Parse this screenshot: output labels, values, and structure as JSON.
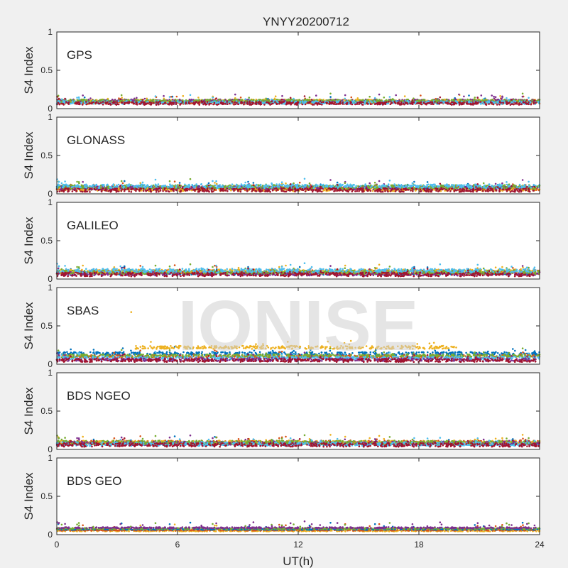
{
  "figure": {
    "title": "YNYY20200712",
    "watermark": "IONISE",
    "background": "#f0f0f0",
    "axes_color": "#262626"
  },
  "chart_data": [
    {
      "type": "scatter",
      "label": "GPS",
      "ylabel": "S4 Index",
      "xlabel": "",
      "xlim": [
        0,
        24
      ],
      "ylim": [
        0,
        1
      ],
      "yticks": [
        0,
        0.5,
        1
      ],
      "ytick_labels": [
        "0",
        "0.5",
        "1"
      ],
      "xticks": [
        0,
        6,
        12,
        18,
        24
      ],
      "xtick_labels": [],
      "baseline": 0.09,
      "spread": 0.02,
      "grid": false,
      "series": [
        {
          "color": "#0072bd",
          "level": 0.09
        },
        {
          "color": "#d95319",
          "level": 0.08
        },
        {
          "color": "#edb120",
          "level": 0.1
        },
        {
          "color": "#7e2f8e",
          "level": 0.1
        },
        {
          "color": "#77ac30",
          "level": 0.1
        },
        {
          "color": "#4dbeee",
          "level": 0.08
        },
        {
          "color": "#a2142f",
          "level": 0.07
        }
      ]
    },
    {
      "type": "scatter",
      "label": "GLONASS",
      "ylabel": "S4 Index",
      "xlabel": "",
      "xlim": [
        0,
        24
      ],
      "ylim": [
        0,
        1
      ],
      "yticks": [
        0,
        0.5,
        1
      ],
      "ytick_labels": [
        "0",
        "0.5",
        "1"
      ],
      "xticks": [
        0,
        6,
        12,
        18,
        24
      ],
      "xtick_labels": [],
      "baseline": 0.07,
      "spread": 0.025,
      "grid": false,
      "series": [
        {
          "color": "#0072bd",
          "level": 0.08
        },
        {
          "color": "#d95319",
          "level": 0.07
        },
        {
          "color": "#edb120",
          "level": 0.06
        },
        {
          "color": "#7e2f8e",
          "level": 0.08
        },
        {
          "color": "#77ac30",
          "level": 0.09
        },
        {
          "color": "#4dbeee",
          "level": 0.1
        },
        {
          "color": "#a2142f",
          "level": 0.05
        }
      ]
    },
    {
      "type": "scatter",
      "label": "GALILEO",
      "ylabel": "S4 Index",
      "xlabel": "",
      "xlim": [
        0,
        24
      ],
      "ylim": [
        0,
        1
      ],
      "yticks": [
        0,
        0.5,
        1
      ],
      "ytick_labels": [
        "0",
        "0.5",
        "1"
      ],
      "xticks": [
        0,
        6,
        12,
        18,
        24
      ],
      "xtick_labels": [],
      "baseline": 0.08,
      "spread": 0.025,
      "grid": false,
      "series": [
        {
          "color": "#0072bd",
          "level": 0.08
        },
        {
          "color": "#d95319",
          "level": 0.09
        },
        {
          "color": "#edb120",
          "level": 0.1
        },
        {
          "color": "#7e2f8e",
          "level": 0.07
        },
        {
          "color": "#77ac30",
          "level": 0.09
        },
        {
          "color": "#4dbeee",
          "level": 0.11
        },
        {
          "color": "#a2142f",
          "level": 0.06
        }
      ]
    },
    {
      "type": "scatter",
      "label": "SBAS",
      "ylabel": "S4 Index",
      "xlabel": "",
      "xlim": [
        0,
        24
      ],
      "ylim": [
        0,
        1
      ],
      "yticks": [
        0,
        0.5,
        1
      ],
      "ytick_labels": [
        "0",
        "0.5",
        "1"
      ],
      "xticks": [
        0,
        6,
        12,
        18,
        24
      ],
      "xtick_labels": [],
      "baseline": 0.1,
      "spread": 0.02,
      "grid": false,
      "series": [
        {
          "color": "#0072bd",
          "level": 0.14
        },
        {
          "color": "#d95319",
          "level": 0.1
        },
        {
          "color": "#edb120",
          "level": 0.22,
          "range": [
            3.8,
            20
          ],
          "outlier": [
            3.7,
            0.68
          ]
        },
        {
          "color": "#77ac30",
          "level": 0.11
        },
        {
          "color": "#4dbeee",
          "level": 0.08
        },
        {
          "color": "#7e2f8e",
          "level": 0.06
        },
        {
          "color": "#a2142f",
          "level": 0.05
        }
      ]
    },
    {
      "type": "scatter",
      "label": "BDS NGEO",
      "ylabel": "S4 Index",
      "xlabel": "",
      "xlim": [
        0,
        24
      ],
      "ylim": [
        0,
        1
      ],
      "yticks": [
        0,
        0.5,
        1
      ],
      "ytick_labels": [
        "0",
        "0.5",
        "1"
      ],
      "xticks": [
        0,
        6,
        12,
        18,
        24
      ],
      "xtick_labels": [],
      "baseline": 0.08,
      "spread": 0.025,
      "grid": false,
      "series": [
        {
          "color": "#0072bd",
          "level": 0.08
        },
        {
          "color": "#d95319",
          "level": 0.09
        },
        {
          "color": "#edb120",
          "level": 0.09
        },
        {
          "color": "#7e2f8e",
          "level": 0.08
        },
        {
          "color": "#77ac30",
          "level": 0.09
        },
        {
          "color": "#4dbeee",
          "level": 0.07
        },
        {
          "color": "#a2142f",
          "level": 0.06
        }
      ]
    },
    {
      "type": "scatter",
      "label": "BDS GEO",
      "ylabel": "S4 Index",
      "xlabel": "UT(h)",
      "xlim": [
        0,
        24
      ],
      "ylim": [
        0,
        1
      ],
      "yticks": [
        0,
        0.5,
        1
      ],
      "ytick_labels": [
        "0",
        "0.5",
        "1"
      ],
      "xticks": [
        0,
        6,
        12,
        18,
        24
      ],
      "xtick_labels": [
        "0",
        "6",
        "12",
        "18",
        "24"
      ],
      "baseline": 0.07,
      "spread": 0.008,
      "grid": false,
      "series": [
        {
          "color": "#edb120",
          "level": 0.05
        },
        {
          "color": "#d95319",
          "level": 0.06
        },
        {
          "color": "#0072bd",
          "level": 0.07
        },
        {
          "color": "#77ac30",
          "level": 0.08
        },
        {
          "color": "#7e2f8e",
          "level": 0.09
        }
      ]
    }
  ]
}
